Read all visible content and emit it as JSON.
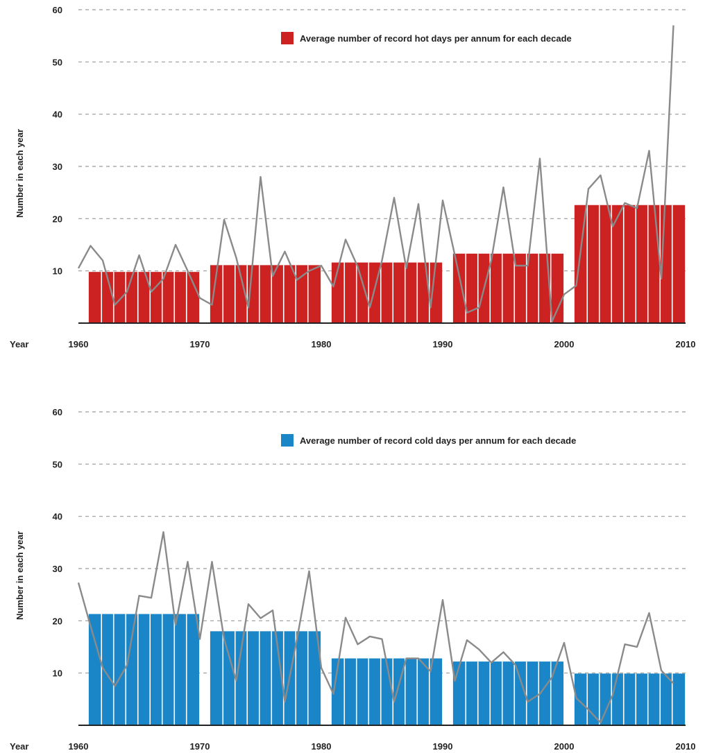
{
  "chart_data": [
    {
      "type": "bar",
      "legend": "Average number of record hot days per annum for each decade",
      "legend_placement": "top-right",
      "ylabel": "Number in each year",
      "xlabel": "Year",
      "ylim": [
        0,
        60
      ],
      "yticks": [
        10,
        20,
        30,
        40,
        50,
        60
      ],
      "xticks": [
        1960,
        1970,
        1980,
        1990,
        2000,
        2010
      ],
      "grid": true,
      "colors": {
        "bar": "#cc2222",
        "line": "#8a8a8a"
      },
      "bars": [
        {
          "start": 1961,
          "end": 1969,
          "value": 9.8
        },
        {
          "start": 1971,
          "end": 1979,
          "value": 11.1
        },
        {
          "start": 1981,
          "end": 1989,
          "value": 11.6
        },
        {
          "start": 1991,
          "end": 1999,
          "value": 13.3
        },
        {
          "start": 2001,
          "end": 2009,
          "value": 22.6
        }
      ],
      "line": {
        "x": [
          1960,
          1961,
          1962,
          1963,
          1964,
          1965,
          1966,
          1967,
          1968,
          1969,
          1970,
          1971,
          1972,
          1973,
          1974,
          1975,
          1976,
          1977,
          1978,
          1979,
          1980,
          1981,
          1982,
          1983,
          1984,
          1985,
          1986,
          1987,
          1988,
          1989,
          1990,
          1991,
          1992,
          1993,
          1994,
          1995,
          1996,
          1997,
          1998,
          1999,
          2000,
          2001,
          2002,
          2003,
          2004,
          2005,
          2006,
          2007,
          2008,
          2009
        ],
        "y": [
          10.5,
          14.8,
          12,
          3.5,
          6,
          13,
          6,
          8.5,
          15,
          10,
          4.8,
          3.5,
          19.8,
          12.5,
          3,
          28,
          9,
          13.7,
          8.3,
          10,
          11,
          7,
          16,
          10.8,
          3,
          12,
          24,
          10.5,
          22.8,
          3,
          23.5,
          13,
          2,
          3,
          12,
          26,
          11,
          11,
          31.5,
          0.3,
          5.5,
          7.2,
          25.7,
          28.3,
          18.5,
          23,
          22,
          33,
          8.5,
          57
        ]
      }
    },
    {
      "type": "bar",
      "legend": "Average number of record cold days per annum for each decade",
      "legend_placement": "top-right",
      "ylabel": "Number in each year",
      "xlabel": "Year",
      "ylim": [
        0,
        60
      ],
      "yticks": [
        10,
        20,
        30,
        40,
        50,
        60
      ],
      "xticks": [
        1960,
        1970,
        1980,
        1990,
        2000,
        2010
      ],
      "grid": true,
      "colors": {
        "bar": "#1a86c8",
        "line": "#8a8a8a"
      },
      "bars": [
        {
          "start": 1961,
          "end": 1969,
          "value": 21.3
        },
        {
          "start": 1971,
          "end": 1979,
          "value": 18
        },
        {
          "start": 1981,
          "end": 1989,
          "value": 12.8
        },
        {
          "start": 1991,
          "end": 1999,
          "value": 12.2
        },
        {
          "start": 2001,
          "end": 2009,
          "value": 9.9
        }
      ],
      "line": {
        "x": [
          1960,
          1961,
          1962,
          1963,
          1964,
          1965,
          1966,
          1967,
          1968,
          1969,
          1970,
          1971,
          1972,
          1973,
          1974,
          1975,
          1976,
          1977,
          1978,
          1979,
          1980,
          1981,
          1982,
          1983,
          1984,
          1985,
          1986,
          1987,
          1988,
          1989,
          1990,
          1991,
          1992,
          1993,
          1994,
          1995,
          1996,
          1997,
          1998,
          1999,
          2000,
          2001,
          2002,
          2003,
          2004,
          2005,
          2006,
          2007,
          2008,
          2009
        ],
        "y": [
          27.3,
          19,
          11,
          7.5,
          11.5,
          24.8,
          24.4,
          37,
          19.2,
          31.3,
          16.5,
          31.3,
          16.5,
          8.5,
          23.2,
          20.5,
          22,
          4.5,
          16.5,
          29.5,
          11,
          6,
          20.6,
          15.5,
          17,
          16.5,
          4.5,
          12.8,
          12.8,
          10.3,
          24,
          8.5,
          16.3,
          14.5,
          12,
          14,
          11.5,
          4.5,
          6,
          9.2,
          15.8,
          5.2,
          3,
          0.5,
          5.8,
          15.5,
          15,
          21.5,
          10.5,
          8
        ]
      }
    }
  ]
}
